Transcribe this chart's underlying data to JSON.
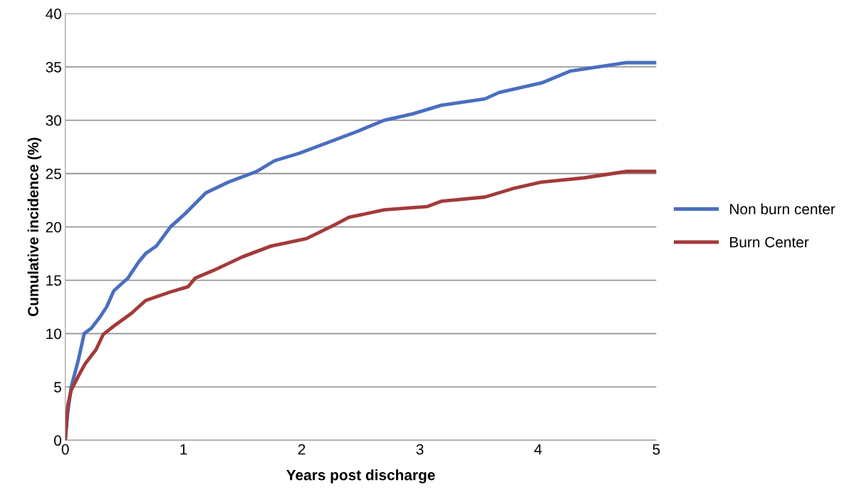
{
  "chart_data": {
    "type": "line",
    "xlabel": "Years post discharge",
    "ylabel": "Cumulative incidence (%)",
    "xlim": [
      0,
      5
    ],
    "xticks": [
      0,
      1,
      2,
      3,
      4,
      5
    ],
    "ylim": [
      0,
      40
    ],
    "yticks": [
      0,
      5,
      10,
      15,
      20,
      25,
      30,
      35,
      40
    ],
    "grid": "y",
    "legend": "right",
    "marker": "none",
    "line_style": "solid",
    "series": [
      {
        "name": "Non burn center",
        "color": "#4a6ec0",
        "x": [
          0,
          0.02,
          0.05,
          0.11,
          0.16,
          0.22,
          0.29,
          0.35,
          0.41,
          0.53,
          0.62,
          0.68,
          0.77,
          0.89,
          1.01,
          1.19,
          1.38,
          1.62,
          1.77,
          1.98,
          2.22,
          2.46,
          2.7,
          2.94,
          3.18,
          3.55,
          3.67,
          4.03,
          4.27,
          4.63,
          4.75,
          5
        ],
        "values": [
          0,
          2.5,
          5,
          7.5,
          10,
          10.5,
          11.5,
          12.5,
          14,
          15.2,
          16.7,
          17.5,
          18.2,
          20,
          21.2,
          23.2,
          24.2,
          25.2,
          26.2,
          26.9,
          27.9,
          28.9,
          30,
          30.6,
          31.4,
          32,
          32.6,
          33.5,
          34.6,
          35.2,
          35.4,
          35.4
        ]
      },
      {
        "name": "Burn Center",
        "color": "#a33a3a",
        "x": [
          0,
          0.02,
          0.05,
          0.11,
          0.17,
          0.26,
          0.32,
          0.41,
          0.56,
          0.68,
          0.89,
          1.04,
          1.1,
          1.25,
          1.5,
          1.74,
          2.04,
          2.28,
          2.4,
          2.7,
          3.06,
          3.18,
          3.55,
          3.79,
          4.03,
          4.39,
          4.75,
          5
        ],
        "values": [
          0,
          3.2,
          4.7,
          6,
          7.2,
          8.5,
          9.9,
          10.7,
          11.9,
          13.1,
          13.9,
          14.4,
          15.2,
          15.9,
          17.2,
          18.2,
          18.9,
          20.2,
          20.9,
          21.6,
          21.9,
          22.4,
          22.8,
          23.6,
          24.2,
          24.6,
          25.2,
          25.2
        ]
      }
    ]
  }
}
